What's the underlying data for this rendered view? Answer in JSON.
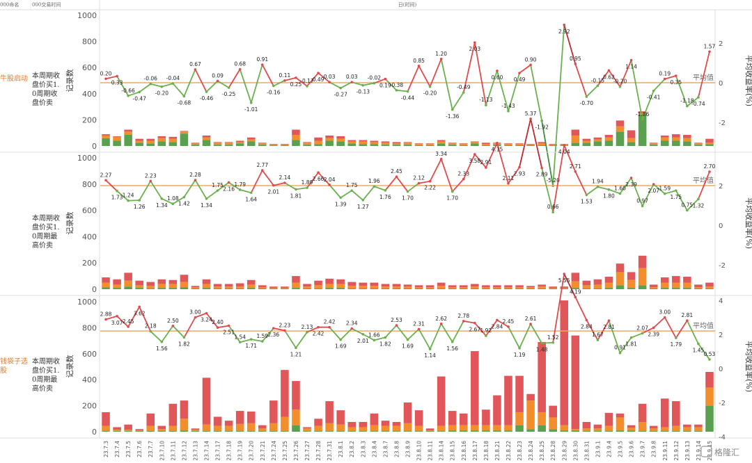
{
  "header": {
    "col_name": "000命名",
    "col_time": "000交易时间",
    "col_date": "日(时间)"
  },
  "watermark": "格隆汇",
  "avg_label": "平均值",
  "colors": {
    "bar_green": "#59a14f",
    "bar_orange": "#f28e2b",
    "bar_red": "#e15759",
    "avg_line": "#f0a862",
    "line_pos": "#e04a4a",
    "line_neg": "#6ab04c",
    "pname": "#e87b2c"
  },
  "chart_data": {
    "type": "bar",
    "categories": [
      "23.7.3",
      "23.7.4",
      "23.7.5",
      "23.7.6",
      "23.7.7",
      "23.7.10",
      "23.7.11",
      "23.7.12",
      "23.7.13",
      "23.7.14",
      "23.7.17",
      "23.7.18",
      "23.7.19",
      "23.7.20",
      "23.7.21",
      "23.7.24",
      "23.7.25",
      "23.7.26",
      "23.7.27",
      "23.7.28",
      "23.7.31",
      "23.8.1",
      "23.8.2",
      "23.8.3",
      "23.8.4",
      "23.8.7",
      "23.8.8",
      "23.8.9",
      "23.8.10",
      "23.8.11",
      "23.8.14",
      "23.8.15",
      "23.8.16",
      "23.8.17",
      "23.8.18",
      "23.8.21",
      "23.8.22",
      "23.8.23",
      "23.8.24",
      "23.8.25",
      "23.8.28",
      "23.8.29",
      "23.8.30",
      "23.8.31",
      "23.9.1",
      "23.9.4",
      "23.9.5",
      "23.9.6",
      "23.9.7",
      "23.9.8",
      "23.9.11",
      "23.9.12",
      "23.9.13",
      "23.9.14",
      "23.9.15"
    ],
    "y_left_label": "记录数",
    "y_right_label": "平均收益率(%)",
    "y_left_ticks": [
      0,
      200,
      400,
      600,
      800,
      1000
    ],
    "y_right_ticks": [
      -4,
      -2,
      0,
      2,
      4,
      6
    ],
    "panels": [
      {
        "name": "牛股启动",
        "measure": "本周期收盘价买1.0周期收盘价卖",
        "avg_value": 0,
        "bars": {
          "green": [
            60,
            40,
            85,
            25,
            20,
            35,
            30,
            95,
            10,
            45,
            10,
            10,
            20,
            35,
            10,
            5,
            5,
            45,
            10,
            15,
            40,
            35,
            20,
            15,
            15,
            10,
            10,
            10,
            5,
            5,
            20,
            10,
            5,
            20,
            5,
            10,
            5,
            5,
            5,
            5,
            5,
            5,
            25,
            25,
            35,
            40,
            110,
            30,
            240,
            10,
            40,
            40,
            35,
            10,
            15
          ],
          "orange": [
            20,
            30,
            25,
            15,
            20,
            25,
            25,
            15,
            10,
            20,
            15,
            15,
            10,
            15,
            10,
            5,
            5,
            40,
            15,
            25,
            20,
            20,
            15,
            20,
            15,
            15,
            10,
            15,
            10,
            10,
            15,
            10,
            10,
            10,
            10,
            10,
            10,
            10,
            5,
            15,
            5,
            5,
            55,
            15,
            15,
            25,
            40,
            30,
            15,
            10,
            25,
            25,
            25,
            10,
            10
          ],
          "red": [
            10,
            5,
            15,
            15,
            15,
            15,
            15,
            5,
            5,
            15,
            5,
            5,
            10,
            15,
            5,
            5,
            5,
            40,
            5,
            25,
            20,
            20,
            10,
            10,
            10,
            10,
            10,
            5,
            5,
            5,
            10,
            5,
            5,
            5,
            10,
            5,
            5,
            5,
            5,
            10,
            5,
            5,
            45,
            15,
            15,
            20,
            45,
            60,
            10,
            5,
            15,
            25,
            25,
            5,
            30
          ]
        },
        "returns": [
          0.2,
          0.33,
          -0.66,
          -0.47,
          -0.06,
          -0.2,
          -0.04,
          -0.68,
          0.67,
          -0.46,
          0.09,
          -0.25,
          0.68,
          -1.01,
          0.91,
          -0.16,
          0.11,
          0.25,
          -0.17,
          0.49,
          0.03,
          -0.27,
          0.03,
          -0.13,
          -0.02,
          0.19,
          -0.38,
          -0.44,
          0.85,
          -0.2,
          1.2,
          -1.36,
          -0.49,
          2.03,
          -1.13,
          0.6,
          -1.43,
          0.49,
          0.9,
          -1.92,
          -5.2,
          2.92,
          0.95,
          -0.7,
          -0.15,
          0.62,
          -0.2,
          1.14,
          -1.86,
          -0.41,
          0.19,
          0.35,
          -1.18,
          -0.74,
          1.57
        ]
      },
      {
        "name": "",
        "measure": "本周期收盘价买1.0周期最高价卖",
        "avg_value": 2.0,
        "bars": {
          "green": [
            15,
            10,
            20,
            10,
            5,
            10,
            10,
            15,
            5,
            10,
            5,
            5,
            5,
            10,
            5,
            5,
            5,
            10,
            5,
            5,
            10,
            10,
            5,
            5,
            5,
            5,
            5,
            5,
            5,
            5,
            5,
            5,
            5,
            5,
            5,
            5,
            5,
            5,
            5,
            5,
            5,
            5,
            10,
            5,
            5,
            10,
            30,
            10,
            30,
            5,
            10,
            10,
            10,
            5,
            5
          ],
          "orange": [
            35,
            25,
            45,
            20,
            20,
            30,
            30,
            40,
            10,
            30,
            15,
            15,
            15,
            25,
            10,
            5,
            5,
            40,
            15,
            25,
            30,
            30,
            20,
            20,
            20,
            15,
            15,
            15,
            10,
            10,
            20,
            10,
            10,
            15,
            10,
            10,
            10,
            10,
            10,
            15,
            5,
            5,
            50,
            25,
            30,
            40,
            100,
            60,
            130,
            10,
            40,
            40,
            40,
            10,
            15
          ],
          "red": [
            40,
            40,
            60,
            35,
            30,
            35,
            30,
            55,
            10,
            35,
            20,
            20,
            25,
            35,
            15,
            10,
            10,
            50,
            20,
            35,
            40,
            35,
            30,
            25,
            25,
            20,
            20,
            15,
            15,
            15,
            25,
            15,
            15,
            20,
            15,
            15,
            15,
            15,
            10,
            15,
            10,
            10,
            65,
            35,
            40,
            45,
            65,
            60,
            95,
            20,
            40,
            50,
            45,
            20,
            30
          ]
        },
        "returns": [
          2.27,
          1.73,
          1.24,
          1.26,
          2.23,
          1.34,
          1.08,
          1.42,
          2.28,
          1.34,
          1.75,
          2.16,
          1.79,
          1.64,
          2.77,
          2.01,
          2.14,
          1.81,
          1.89,
          2.66,
          2.04,
          1.39,
          1.75,
          1.27,
          1.96,
          1.76,
          2.45,
          1.7,
          2.12,
          2.22,
          3.34,
          1.7,
          2.33,
          3.58,
          2.91,
          4.15,
          2.11,
          2.93,
          5.37,
          2.89,
          0.66,
          4.04,
          2.71,
          1.53,
          1.94,
          1.8,
          1.6,
          2.39,
          0.97,
          2.07,
          1.59,
          1.75,
          0.75,
          1.32,
          2.7
        ]
      },
      {
        "name": "钱袋子选股",
        "measure": "本周期收盘价买1.0周期最高价卖",
        "avg_value": 2.2,
        "bars": {
          "green": [
            5,
            5,
            5,
            5,
            5,
            5,
            5,
            10,
            5,
            5,
            5,
            5,
            5,
            5,
            5,
            5,
            5,
            50,
            5,
            5,
            5,
            5,
            5,
            5,
            5,
            5,
            5,
            5,
            5,
            5,
            5,
            10,
            10,
            10,
            10,
            10,
            10,
            50,
            20,
            50,
            20,
            10,
            10,
            5,
            5,
            5,
            10,
            10,
            5,
            5,
            5,
            5,
            5,
            5,
            200
          ],
          "orange": [
            40,
            10,
            10,
            5,
            40,
            15,
            40,
            90,
            10,
            50,
            40,
            40,
            55,
            60,
            20,
            60,
            110,
            120,
            20,
            40,
            60,
            50,
            30,
            30,
            45,
            40,
            40,
            60,
            40,
            5,
            40,
            40,
            40,
            40,
            40,
            40,
            40,
            100,
            220,
            100,
            90,
            40,
            10,
            20,
            20,
            40,
            100,
            20,
            70,
            20,
            30,
            40,
            30,
            30,
            140
          ],
          "red": [
            105,
            20,
            40,
            10,
            95,
            25,
            170,
            140,
            10,
            360,
            70,
            40,
            100,
            90,
            25,
            175,
            360,
            220,
            10,
            55,
            170,
            110,
            40,
            40,
            90,
            40,
            30,
            160,
            120,
            15,
            380,
            110,
            90,
            570,
            120,
            230,
            380,
            280,
            50,
            540,
            90,
            960,
            720,
            50,
            30,
            100,
            30,
            20,
            140,
            20,
            220,
            190,
            20,
            20,
            120
          ]
        },
        "returns": [
          2.88,
          3.07,
          2.45,
          3.62,
          2.18,
          1.56,
          2.5,
          1.82,
          3.0,
          3.24,
          2.4,
          2.51,
          1.54,
          1.71,
          1.59,
          2.36,
          2.23,
          1.21,
          2.13,
          2.42,
          2.42,
          1.69,
          2.34,
          2.01,
          1.66,
          1.82,
          2.53,
          1.69,
          2.31,
          1.14,
          2.62,
          1.56,
          2.78,
          2.67,
          1.92,
          2.84,
          2.45,
          1.19,
          2.61,
          1.48,
          1.52,
          5.55,
          4.19,
          2.84,
          1.67,
          2.81,
          0.91,
          1.81,
          2.07,
          2.39,
          3.0,
          1.79,
          2.81,
          1.45,
          0.53
        ]
      }
    ]
  }
}
